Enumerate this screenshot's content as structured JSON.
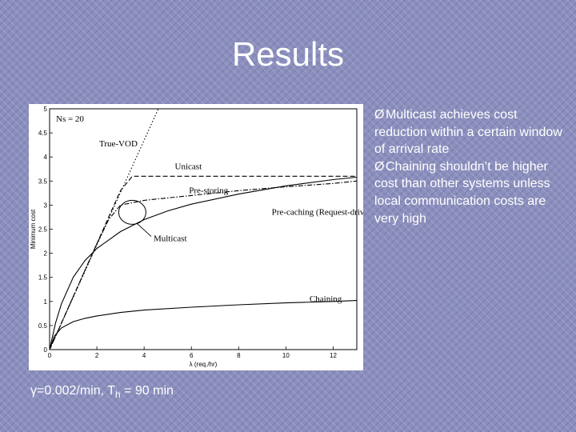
{
  "slide": {
    "title": "Results",
    "bullets": [
      "Multicast achieves cost reduction within a certain window of arrival rate",
      "Chaining shouldn’t be higher cost than other systems unless local communication costs are very high"
    ],
    "bullet_marker": "Ø",
    "caption": {
      "gamma": "γ=0.002/min, T",
      "sub": "h",
      "rest": " = 90 min"
    }
  },
  "chart_data": {
    "type": "line",
    "xlabel": "λ (req./hr)",
    "ylabel": "Minimum cost",
    "xlim": [
      0,
      13
    ],
    "ylim": [
      0,
      5
    ],
    "xticks": [
      0,
      2,
      4,
      6,
      8,
      10,
      12
    ],
    "yticks": [
      0,
      0.5,
      1,
      1.5,
      2,
      2.5,
      3,
      3.5,
      4,
      4.5,
      5
    ],
    "annotation": "Ns = 20",
    "grid": false,
    "series": [
      {
        "name": "True-VOD",
        "style": "dotted",
        "x": [
          0,
          4.6
        ],
        "y": [
          0,
          5.0
        ]
      },
      {
        "name": "Unicast",
        "style": "dashed",
        "x": [
          0,
          0.5,
          1,
          1.5,
          2,
          2.5,
          3,
          3.5,
          4,
          4.5,
          5,
          6,
          8,
          10,
          12,
          13
        ],
        "y": [
          0,
          0.55,
          1.1,
          1.65,
          2.2,
          2.75,
          3.3,
          3.6,
          3.6,
          3.6,
          3.6,
          3.6,
          3.6,
          3.6,
          3.6,
          3.6
        ]
      },
      {
        "name": "Pre-storing",
        "style": "dashdot",
        "x": [
          0,
          0.5,
          1,
          1.5,
          2,
          2.5,
          3,
          4,
          5,
          6,
          8,
          10,
          12,
          13
        ],
        "y": [
          0,
          0.55,
          1.1,
          1.65,
          2.2,
          2.7,
          3.0,
          3.1,
          3.15,
          3.2,
          3.3,
          3.38,
          3.45,
          3.5
        ]
      },
      {
        "name": "Pre-caching (Request-driven)",
        "style": "solid",
        "x": [
          0,
          0.25,
          0.5,
          1,
          1.5,
          2,
          3,
          4,
          5,
          6,
          8,
          10,
          12,
          13
        ],
        "y": [
          0,
          0.55,
          0.95,
          1.5,
          1.85,
          2.1,
          2.45,
          2.7,
          2.88,
          3.02,
          3.23,
          3.4,
          3.53,
          3.58
        ]
      },
      {
        "name": "Chaining",
        "style": "solid",
        "x": [
          0,
          0.2,
          0.5,
          1,
          1.5,
          2,
          3,
          4,
          6,
          8,
          10,
          12,
          13
        ],
        "y": [
          0,
          0.28,
          0.45,
          0.58,
          0.65,
          0.7,
          0.77,
          0.82,
          0.88,
          0.93,
          0.97,
          1.0,
          1.02
        ]
      }
    ],
    "labels": [
      {
        "text": "True-VOD",
        "x": 2.1,
        "y": 4.22
      },
      {
        "text": "Unicast",
        "x": 5.3,
        "y": 3.75
      },
      {
        "text": "Pre-storing",
        "x": 5.9,
        "y": 3.25
      },
      {
        "text": "Pre-caching (Request-driven)",
        "x": 9.4,
        "y": 2.8
      },
      {
        "text": "Multicast",
        "x": 4.4,
        "y": 2.25
      },
      {
        "text": "Chaining",
        "x": 11.0,
        "y": 1.0
      }
    ]
  }
}
